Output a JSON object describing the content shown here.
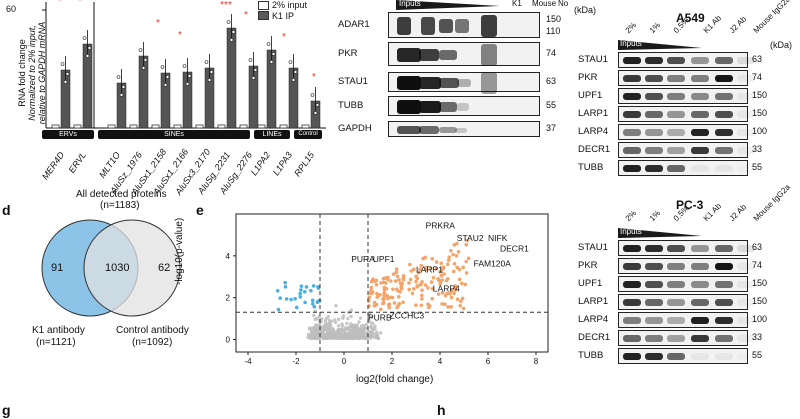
{
  "panels": {
    "d": "d",
    "e": "e",
    "g": "g",
    "h": "h"
  },
  "panel_c": {
    "legend": [
      "2% input",
      "K1 IP"
    ],
    "ylabel_lines": [
      "RNA fold change",
      "Normalized to 2% input,",
      "relative to GAPDH mRNA"
    ],
    "ytick": "60",
    "categories": [
      "MER4D",
      "ERVL",
      "MLT1O",
      "AluSz_1976",
      "AluSx1_2158",
      "AluSx1_2166",
      "AluSx3_2170",
      "AluSg_2231",
      "AluSg_2276",
      "L1PA2",
      "L1PA3",
      "RPL15"
    ],
    "groups": [
      {
        "name": "ERVs"
      },
      {
        "name": "SINEs"
      },
      {
        "name": "LINEs"
      },
      {
        "name": "Control"
      }
    ],
    "significance": [
      "*",
      "*",
      "*",
      "*",
      "***",
      "*",
      "*",
      "*",
      "*"
    ]
  },
  "blot_mid": {
    "header": "Inputs",
    "header_extra": [
      "K1",
      "Mouse",
      "No"
    ],
    "kda_unit": "(kDa)",
    "rows": [
      {
        "name": "ADAR1",
        "kda": [
          "150",
          "110"
        ]
      },
      {
        "name": "PKR",
        "kda": [
          "74"
        ]
      },
      {
        "name": "STAU1",
        "kda": [
          "63"
        ]
      },
      {
        "name": "TUBB",
        "kda": [
          "55"
        ]
      },
      {
        "name": "GAPDH",
        "kda": [
          "37"
        ]
      }
    ]
  },
  "blot_a549": {
    "title": "A549",
    "kda_unit": "(kDa)",
    "columns": [
      "2%",
      "1%",
      "0.5%",
      "K1 Ab",
      "J2 Ab",
      "Mouse IgG2a"
    ],
    "header": "Inputs",
    "rows": [
      {
        "name": "STAU1",
        "kda": "63"
      },
      {
        "name": "PKR",
        "kda": "74"
      },
      {
        "name": "UPF1",
        "kda": "150"
      },
      {
        "name": "LARP1",
        "kda": "150"
      },
      {
        "name": "LARP4",
        "kda": "100"
      },
      {
        "name": "DECR1",
        "kda": "33"
      },
      {
        "name": "TUBB",
        "kda": "55"
      }
    ]
  },
  "blot_pc3": {
    "title": "PC-3",
    "columns": [
      "2%",
      "1%",
      "0.5%",
      "K1 Ab",
      "J2 Ab",
      "Mouse IgG2a"
    ],
    "header": "Inputs",
    "rows": [
      {
        "name": "STAU1",
        "kda": "63"
      },
      {
        "name": "PKR",
        "kda": "74"
      },
      {
        "name": "UPF1",
        "kda": "150"
      },
      {
        "name": "LARP1",
        "kda": "150"
      },
      {
        "name": "LARP4",
        "kda": "100"
      },
      {
        "name": "DECR1",
        "kda": "33"
      },
      {
        "name": "TUBB",
        "kda": "55"
      }
    ]
  },
  "venn": {
    "top_label": "All detected proteins",
    "top_count": "(n=1183)",
    "left_only": "91",
    "overlap": "1030",
    "right_only": "62",
    "left_label": "K1 antibody",
    "left_count": "(n=1121)",
    "right_label": "Control antibody",
    "right_count": "(n=1092)",
    "colors": {
      "left": "#8cc4e8",
      "right": "#e2e2e2",
      "overlap": "#b9d3e3"
    }
  },
  "volcano": {
    "xlabel": "log2(fold change)",
    "ylabel": "-log10(p-value)",
    "xticks": [
      "-4",
      "-2",
      "0",
      "2",
      "4",
      "6",
      "8"
    ],
    "yticks": [
      "0",
      "2",
      "4"
    ],
    "labels": [
      {
        "text": "PRKRA",
        "x": 3.4,
        "y": 5.3
      },
      {
        "text": "STAU2",
        "x": 4.7,
        "y": 4.7
      },
      {
        "text": "NIFK",
        "x": 6.0,
        "y": 4.7
      },
      {
        "text": "DECR1",
        "x": 6.5,
        "y": 4.2
      },
      {
        "text": "PURA",
        "x": 0.3,
        "y": 3.7
      },
      {
        "text": "UPF1",
        "x": 1.2,
        "y": 3.7
      },
      {
        "text": "FAM120A",
        "x": 5.4,
        "y": 3.5
      },
      {
        "text": "LARP1",
        "x": 3.0,
        "y": 3.2
      },
      {
        "text": "LARP4",
        "x": 3.7,
        "y": 2.3
      },
      {
        "text": "PURB",
        "x": 1.0,
        "y": 0.9
      },
      {
        "text": "ZCCHC3",
        "x": 1.9,
        "y": 1.0
      }
    ],
    "colors": {
      "up": "#f4a46a",
      "down": "#4ab0e0",
      "ns": "#bdbdbd"
    }
  }
}
